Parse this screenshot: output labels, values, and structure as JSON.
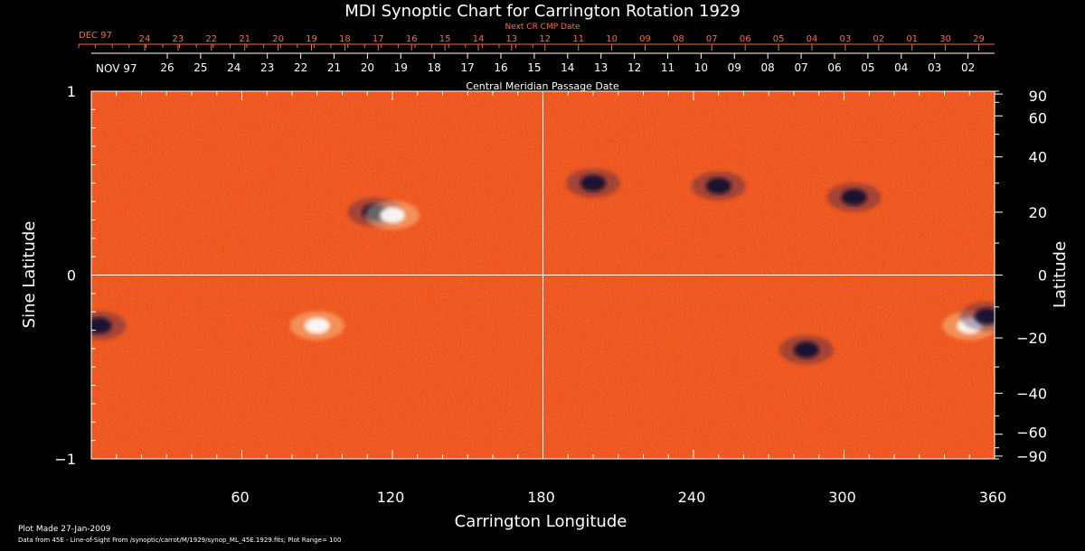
{
  "title": "MDI Synoptic Chart for Carrington Rotation 1929",
  "colors": {
    "background": "#000000",
    "text": "#ffffff",
    "top_axis": "#ff6a3c",
    "plot_base": "#f0521e",
    "positive": "#fff3c0",
    "negative": "#1a1a5a",
    "grid": "#ffffff"
  },
  "top_axes": {
    "next_axis_title": "Next CR CMP Date",
    "next_month_label": "DEC 97",
    "next_ticks": [
      "24",
      "23",
      "22",
      "21",
      "20",
      "19",
      "18",
      "17",
      "16",
      "15",
      "14",
      "13",
      "12",
      "11",
      "10",
      "09",
      "08",
      "07",
      "06",
      "05",
      "04",
      "03",
      "02",
      "01",
      "30",
      "29"
    ],
    "cmp_month_label": "NOV 97",
    "cmp_ticks": [
      "26",
      "25",
      "24",
      "23",
      "22",
      "21",
      "20",
      "19",
      "18",
      "17",
      "16",
      "15",
      "14",
      "13",
      "12",
      "11",
      "10",
      "09",
      "08",
      "07",
      "06",
      "05",
      "04",
      "03",
      "02"
    ],
    "cmp_axis_title": "Central Meridian Passage Date"
  },
  "chart_data": {
    "type": "heatmap",
    "title": "MDI Synoptic Chart for Carrington Rotation 1929",
    "xlabel": "Carrington Longitude",
    "ylabel": "Sine Latitude",
    "y2label": "Latitude",
    "xlim": [
      0,
      360
    ],
    "ylim": [
      -1,
      1
    ],
    "x_ticks": [
      60,
      120,
      180,
      240,
      300,
      360
    ],
    "y_ticks": [
      1,
      0,
      -1
    ],
    "y_tick_labels": [
      "1",
      "0",
      "−1"
    ],
    "lat_ticks": [
      90,
      60,
      40,
      20,
      0,
      -20,
      -40,
      -60,
      -90
    ],
    "lat_tick_labels": [
      "90",
      "60",
      "40",
      "20",
      "0",
      "−20",
      "−40",
      "−60",
      "−90"
    ],
    "grid_lines": {
      "longitude": [
        180
      ],
      "sine_latitude": [
        0
      ]
    },
    "plot_range": 100,
    "regions": [
      {
        "lon": 113,
        "lat": 20,
        "polarity": "negative"
      },
      {
        "lon": 120,
        "lat": 19,
        "polarity": "positive"
      },
      {
        "lon": 200,
        "lat": 30,
        "polarity": "negative"
      },
      {
        "lon": 250,
        "lat": 29,
        "polarity": "negative"
      },
      {
        "lon": 304,
        "lat": 25,
        "polarity": "negative"
      },
      {
        "lon": 3,
        "lat": -16,
        "polarity": "negative"
      },
      {
        "lon": 90,
        "lat": -16,
        "polarity": "positive"
      },
      {
        "lon": 350,
        "lat": -16,
        "polarity": "positive"
      },
      {
        "lon": 357,
        "lat": -13,
        "polarity": "negative"
      },
      {
        "lon": 285,
        "lat": -24,
        "polarity": "negative"
      }
    ]
  },
  "footer": {
    "line1": "Plot Made 27-Jan-2009",
    "line2": "Data from 45E - Line-of-Sight From /synoptic/carrot/M/1929/synop_ML_45E.1929.fits; Plot Range=  100"
  }
}
